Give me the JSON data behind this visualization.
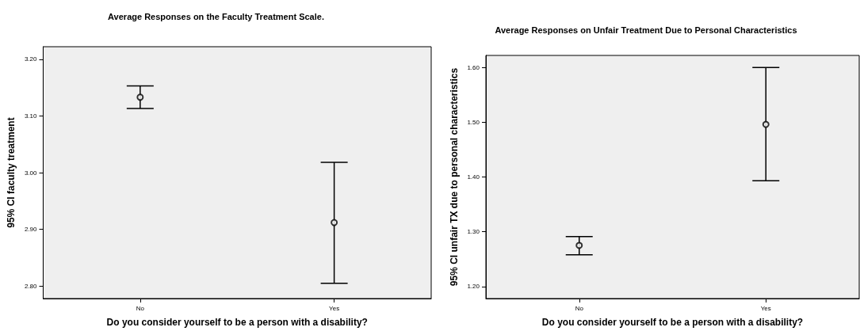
{
  "chart_data": [
    {
      "type": "scatter",
      "title": "Average Responses on the Faculty Treatment Scale.",
      "xlabel": "Do you consider yourself to be a person with a disability?",
      "ylabel": "95% CI faculty treatment",
      "categories": [
        "No",
        "Yes"
      ],
      "ylim": [
        2.778,
        3.222
      ],
      "yticks": [
        {
          "value": 2.8,
          "label": "2.80"
        },
        {
          "value": 2.9,
          "label": "2.90"
        },
        {
          "value": 3.0,
          "label": "3.00"
        },
        {
          "value": 3.1,
          "label": "3.10"
        },
        {
          "value": 3.2,
          "label": "3.20"
        }
      ],
      "marker": "circle",
      "series": [
        {
          "color": "#000000",
          "values": [
            3.133,
            2.912
          ],
          "errors": [
            [
              3.113,
              3.153
            ],
            [
              2.805,
              3.018
            ]
          ]
        }
      ]
    },
    {
      "type": "scatter",
      "title": "Average Responses on Unfair Treatment Due to Personal Characteristics",
      "xlabel": "Do you consider yourself to be a person with a disability?",
      "ylabel": "95% CI unfair TX due to personal characteristics",
      "categories": [
        "No",
        "Yes"
      ],
      "ylim": [
        1.178,
        1.622
      ],
      "yticks": [
        {
          "value": 1.2,
          "label": "1.20"
        },
        {
          "value": 1.3,
          "label": "1.30"
        },
        {
          "value": 1.4,
          "label": "1.40"
        },
        {
          "value": 1.5,
          "label": "1.50"
        },
        {
          "value": 1.6,
          "label": "1.60"
        }
      ],
      "marker": "circle",
      "series": [
        {
          "color": "#000000",
          "values": [
            1.275,
            1.496
          ],
          "errors": [
            [
              1.258,
              1.291
            ],
            [
              1.393,
              1.6
            ]
          ]
        }
      ]
    }
  ]
}
